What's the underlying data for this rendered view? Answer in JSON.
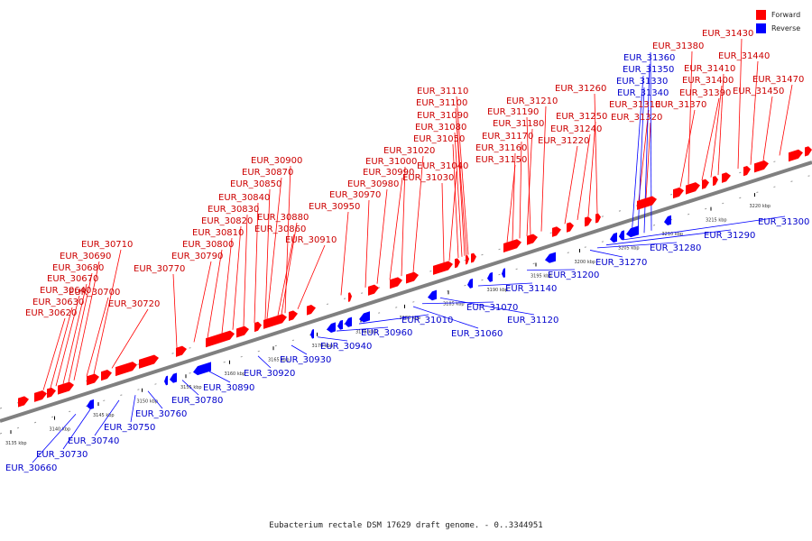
{
  "caption": "Eubacterium rectale DSM 17629 draft genome. - 0..3344951",
  "legend": [
    {
      "label": "Forward",
      "color": "#ff0000"
    },
    {
      "label": "Reverse",
      "color": "#0000ff"
    }
  ],
  "colors": {
    "forward": "#ff0000",
    "reverse": "#0000ff",
    "axis": "#808080"
  },
  "ticks": [
    "3135 kbp",
    "3140 kbp",
    "3145 kbp",
    "3150 kbp",
    "3155 kbp",
    "3160 kbp",
    "3165 kbp",
    "3170 kbp",
    "3175 kbp",
    "3180 kbp",
    "3185 kbp",
    "3190 kbp",
    "3195 kbp",
    "3200 kbp",
    "3205 kbp",
    "3210 kbp",
    "3215 kbp",
    "3220 kbp"
  ],
  "forward_genes": [
    "EUR_30620",
    "EUR_30630",
    "EUR_30640",
    "EUR_30670",
    "EUR_30680",
    "EUR_30690",
    "EUR_30700",
    "EUR_30710",
    "EUR_30720",
    "EUR_30770",
    "EUR_30790",
    "EUR_30800",
    "EUR_30810",
    "EUR_30820",
    "EUR_30830",
    "EUR_30840",
    "EUR_30850",
    "EUR_30860",
    "EUR_30870",
    "EUR_30880",
    "EUR_30900",
    "EUR_30910",
    "EUR_30950",
    "EUR_30970",
    "EUR_30980",
    "EUR_30990",
    "EUR_31000",
    "EUR_31020",
    "EUR_31030",
    "EUR_31040",
    "EUR_31050",
    "EUR_31080",
    "EUR_31090",
    "EUR_31100",
    "EUR_31110",
    "EUR_31150",
    "EUR_31160",
    "EUR_31170",
    "EUR_31180",
    "EUR_31190",
    "EUR_31210",
    "EUR_31220",
    "EUR_31240",
    "EUR_31250",
    "EUR_31260",
    "EUR_31310",
    "EUR_31320",
    "EUR_31370",
    "EUR_31380",
    "EUR_31390",
    "EUR_31400",
    "EUR_31410",
    "EUR_31430",
    "EUR_31440",
    "EUR_31450",
    "EUR_31470"
  ],
  "reverse_genes": [
    "EUR_30660",
    "EUR_30730",
    "EUR_30740",
    "EUR_30750",
    "EUR_30760",
    "EUR_30780",
    "EUR_30890",
    "EUR_30920",
    "EUR_30930",
    "EUR_30940",
    "EUR_30960",
    "EUR_31010",
    "EUR_31060",
    "EUR_31070",
    "EUR_31120",
    "EUR_31140",
    "EUR_31200",
    "EUR_31270",
    "EUR_31280",
    "EUR_31290",
    "EUR_31300",
    "EUR_31330",
    "EUR_31340",
    "EUR_31350",
    "EUR_31360"
  ]
}
